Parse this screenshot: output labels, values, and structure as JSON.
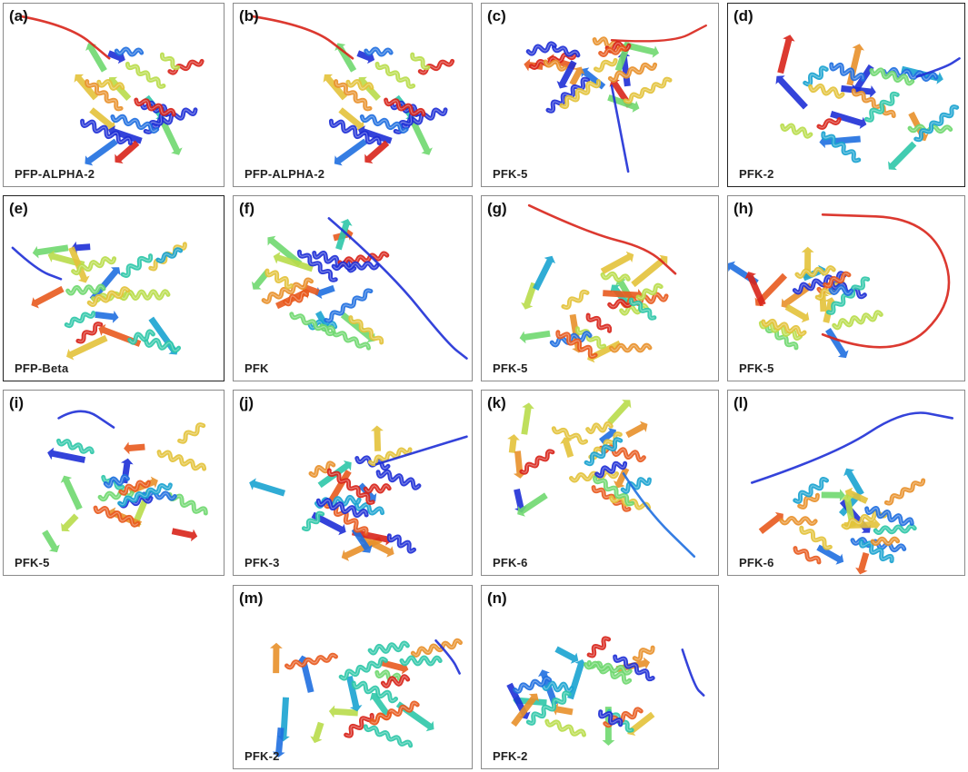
{
  "panels": [
    {
      "id": "a",
      "label": "(a)",
      "name": "PFP-ALPHA-2"
    },
    {
      "id": "b",
      "label": "(b)",
      "name": "PFP-ALPHA-2"
    },
    {
      "id": "c",
      "label": "(c)",
      "name": "PFK-5"
    },
    {
      "id": "d",
      "label": "(d)",
      "name": "PFK-2"
    },
    {
      "id": "e",
      "label": "(e)",
      "name": "PFP-Beta"
    },
    {
      "id": "f",
      "label": "(f)",
      "name": "PFK"
    },
    {
      "id": "g",
      "label": "(g)",
      "name": "PFK-5"
    },
    {
      "id": "h",
      "label": "(h)",
      "name": "PFK-5"
    },
    {
      "id": "i",
      "label": "(i)",
      "name": "PFK-5"
    },
    {
      "id": "j",
      "label": "(j)",
      "name": "PFK-3"
    },
    {
      "id": "k",
      "label": "(k)",
      "name": "PFK-6"
    },
    {
      "id": "l",
      "label": "(l)",
      "name": "PFK-6"
    },
    {
      "id": "m",
      "label": "(m)",
      "name": "PFK-2"
    },
    {
      "id": "n",
      "label": "(n)",
      "name": "PFK-2"
    }
  ]
}
